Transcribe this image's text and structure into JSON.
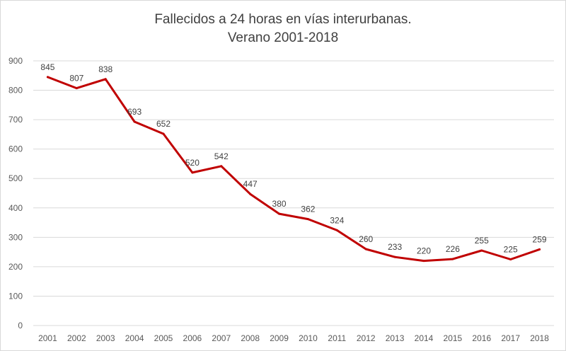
{
  "chart_data": {
    "type": "line",
    "title": [
      "Fallecidos a 24 horas en vías interurbanas.",
      "Verano 2001-2018"
    ],
    "categories": [
      "2001",
      "2002",
      "2003",
      "2004",
      "2005",
      "2006",
      "2007",
      "2008",
      "2009",
      "2010",
      "2011",
      "2012",
      "2013",
      "2014",
      "2015",
      "2016",
      "2017",
      "2018"
    ],
    "series": [
      {
        "values": [
          845,
          807,
          838,
          693,
          652,
          520,
          542,
          447,
          380,
          362,
          324,
          260,
          233,
          220,
          226,
          255,
          225,
          259
        ],
        "color": "#c00000"
      }
    ],
    "data_labels": true,
    "ylim": [
      0,
      900
    ],
    "yticks": [
      0,
      100,
      200,
      300,
      400,
      500,
      600,
      700,
      800,
      900
    ],
    "grid": "horizontal",
    "gridline_color": "#d9d9d9",
    "axis_text_color": "#595959"
  }
}
